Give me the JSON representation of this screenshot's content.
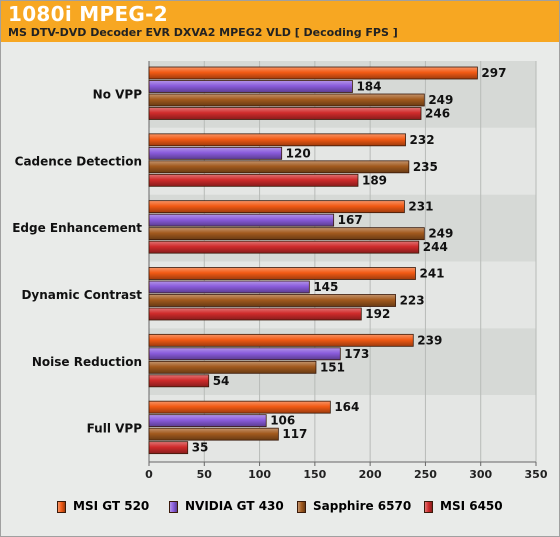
{
  "title": "1080i MPEG-2",
  "subtitle": "MS DTV-DVD Decoder EVR DXVA2 MPEG2 VLD [ Decoding FPS ]",
  "chart_data": {
    "type": "bar",
    "orientation": "horizontal",
    "categories": [
      "No VPP",
      "Cadence Detection",
      "Edge Enhancement",
      "Dynamic Contrast",
      "Noise Reduction",
      "Full VPP"
    ],
    "series": [
      {
        "name": "MSI GT 520",
        "color": "#f25a14",
        "values": [
          297,
          232,
          231,
          241,
          239,
          164
        ]
      },
      {
        "name": "NVIDIA GT 430",
        "color": "#8a5cdc",
        "values": [
          184,
          120,
          167,
          145,
          173,
          106
        ]
      },
      {
        "name": "Sapphire 6570",
        "color": "#a25a1e",
        "values": [
          249,
          235,
          249,
          223,
          151,
          117
        ]
      },
      {
        "name": "MSI 6450",
        "color": "#cf2b2b",
        "values": [
          246,
          189,
          244,
          192,
          54,
          35
        ]
      }
    ],
    "xlim": [
      0,
      350
    ],
    "xticks": [
      "0",
      "50",
      "100",
      "150",
      "200",
      "250",
      "300",
      "350"
    ],
    "grid": true,
    "legend_position": "bottom",
    "data_labels": true
  }
}
